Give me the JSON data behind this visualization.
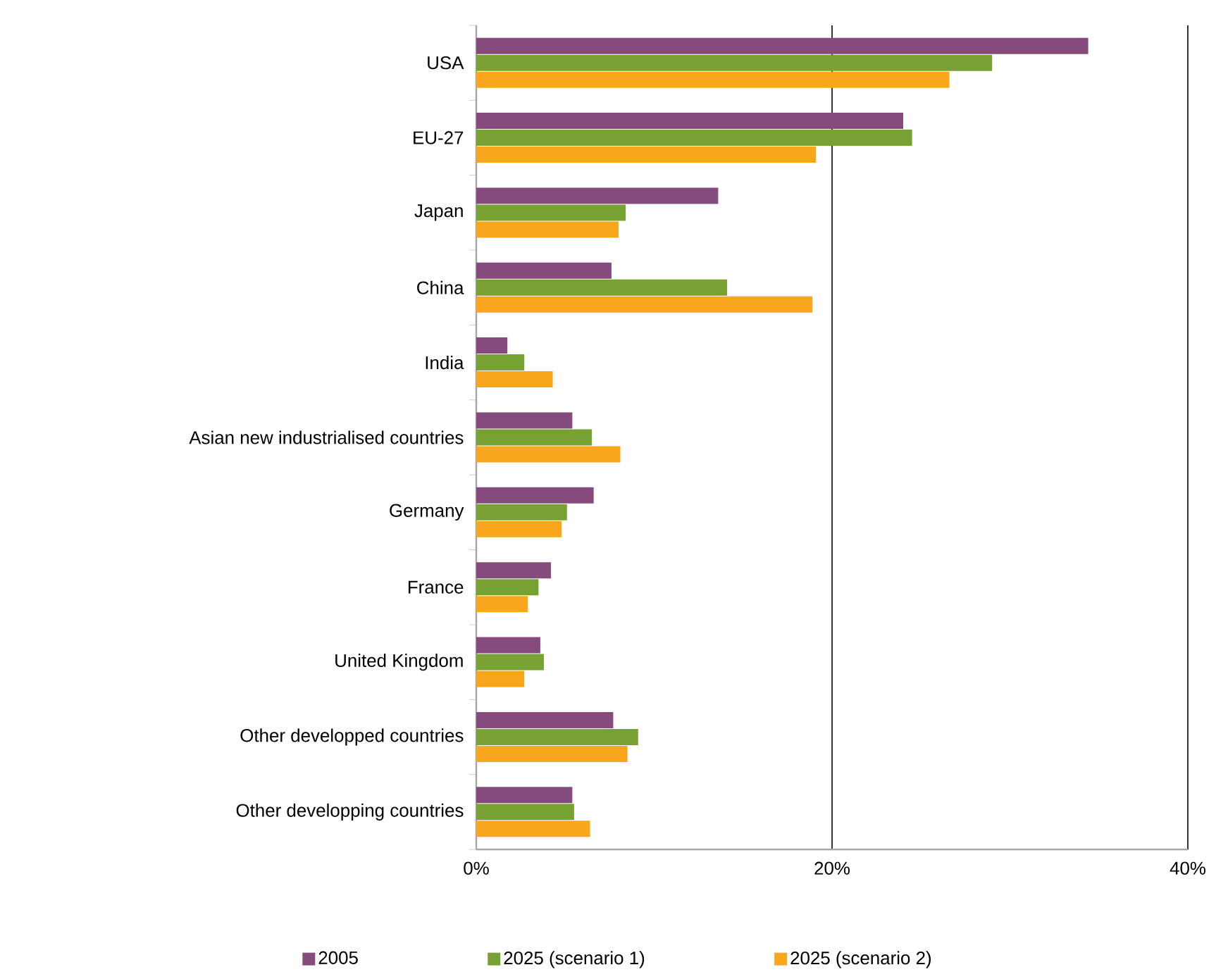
{
  "chart_data": {
    "type": "bar",
    "orientation": "horizontal",
    "categories": [
      "USA",
      "EU-27",
      "Japan",
      "China",
      "India",
      "Asian new industrialised countries",
      "Germany",
      "France",
      "United Kingdom",
      "Other developped countries",
      "Other developping countries"
    ],
    "series": [
      {
        "name": "2005",
        "color": "#854b7c",
        "values": [
          34.4,
          24.0,
          13.6,
          7.6,
          1.75,
          5.4,
          6.6,
          4.2,
          3.6,
          7.7,
          5.4
        ]
      },
      {
        "name": "2025 (scenario 1)",
        "color": "#77a132",
        "values": [
          29.0,
          24.5,
          8.4,
          14.1,
          2.7,
          6.5,
          5.1,
          3.5,
          3.8,
          9.1,
          5.5
        ]
      },
      {
        "name": "2025 (scenario 2)",
        "color": "#f8a61c",
        "values": [
          26.6,
          19.1,
          8.0,
          18.9,
          4.3,
          8.1,
          4.8,
          2.9,
          2.7,
          8.5,
          6.4
        ]
      }
    ],
    "xlim": [
      0,
      40
    ],
    "xticks": [
      {
        "value": 0,
        "label": "0%"
      },
      {
        "value": 20,
        "label": "20%"
      },
      {
        "value": 40,
        "label": "40%"
      }
    ],
    "grid": "x",
    "legend": "bottom"
  }
}
